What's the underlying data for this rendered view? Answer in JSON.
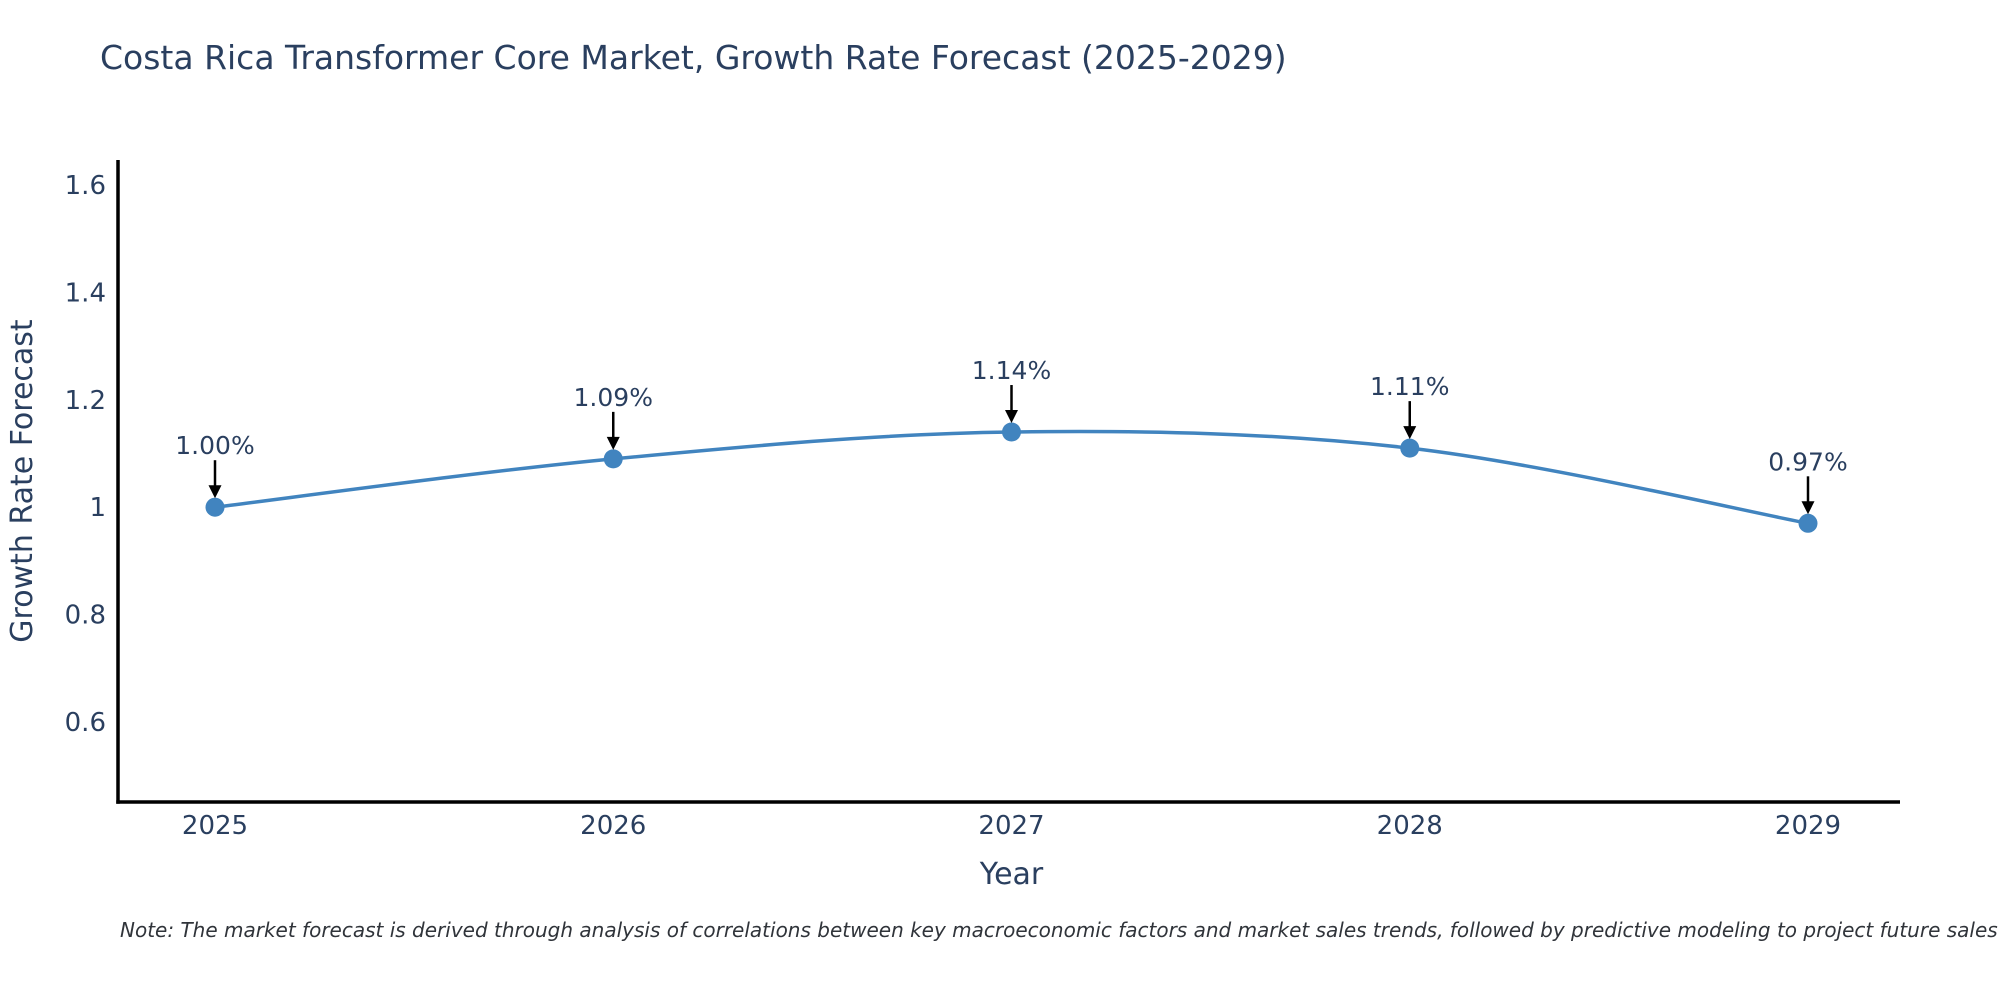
{
  "title": "Costa Rica Transformer Core Market, Growth Rate Forecast (2025-2029)",
  "note": "Note: The market forecast is derived through analysis of correlations between key macroeconomic factors and market sales trends, followed by predictive modeling to project future sales",
  "chart_data": {
    "type": "line",
    "title": "Costa Rica Transformer Core Market, Growth Rate Forecast (2025-2029)",
    "xlabel": "Year",
    "ylabel": "Growth Rate Forecast",
    "x": [
      2025,
      2026,
      2027,
      2028,
      2029
    ],
    "x_tick_labels": [
      "2025",
      "2026",
      "2027",
      "2028",
      "2029"
    ],
    "series": [
      {
        "name": "Growth Rate Forecast",
        "values": [
          1.0,
          1.09,
          1.14,
          1.11,
          0.97
        ]
      }
    ],
    "point_labels": [
      "1.00%",
      "1.09%",
      "1.14%",
      "1.11%",
      "0.97%"
    ],
    "y_tick_values": [
      0.6,
      0.8,
      1.0,
      1.2,
      1.4,
      1.6
    ],
    "y_tick_labels": [
      "0.6",
      "0.8",
      "1",
      "1.2",
      "1.4",
      "1.6"
    ],
    "ylim": [
      0.45,
      1.65
    ],
    "line_shape": "spline",
    "grid": false,
    "legend": "none",
    "annotation_arrows": true,
    "colors": {
      "line": "#4184bf",
      "marker": "#4184bf",
      "axis": "#000000",
      "text": "#2a3f5f",
      "arrow": "#000000"
    }
  }
}
